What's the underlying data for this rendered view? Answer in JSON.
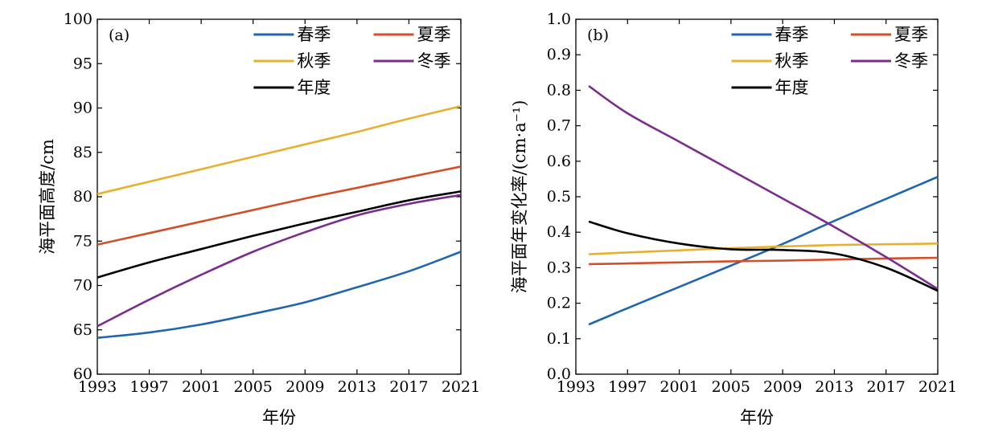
{
  "chart_data": [
    {
      "type": "line",
      "panel_label": "(a)",
      "xlabel": "年份",
      "ylabel": "海平面高度/cm",
      "xlim": [
        1993,
        2021
      ],
      "ylim": [
        60,
        100
      ],
      "xticks": [
        1993,
        1997,
        2001,
        2005,
        2009,
        2013,
        2017,
        2021
      ],
      "yticks": [
        60,
        65,
        70,
        75,
        80,
        85,
        90,
        95,
        100
      ],
      "ytick_labels": [
        "60",
        "65",
        "70",
        "75",
        "80",
        "85",
        "90",
        "95",
        "100"
      ],
      "x": [
        1993,
        1997,
        2001,
        2005,
        2009,
        2013,
        2017,
        2021
      ],
      "legend_position": "top-right",
      "series": [
        {
          "name": "春季",
          "color": "#2166ac",
          "values": [
            64.1,
            64.7,
            65.6,
            66.8,
            68.1,
            69.8,
            71.6,
            73.8
          ]
        },
        {
          "name": "夏季",
          "color": "#d0502a",
          "values": [
            74.6,
            75.9,
            77.2,
            78.5,
            79.8,
            81.0,
            82.2,
            83.4
          ]
        },
        {
          "name": "秋季",
          "color": "#e8b030",
          "values": [
            80.3,
            81.7,
            83.1,
            84.5,
            85.9,
            87.3,
            88.8,
            90.2
          ]
        },
        {
          "name": "冬季",
          "color": "#7b2d8e",
          "values": [
            65.4,
            68.4,
            71.2,
            73.8,
            76.0,
            77.9,
            79.2,
            80.2
          ]
        },
        {
          "name": "年度",
          "color": "#000000",
          "values": [
            70.9,
            72.6,
            74.1,
            75.6,
            77.0,
            78.3,
            79.6,
            80.6
          ]
        }
      ]
    },
    {
      "type": "line",
      "panel_label": "(b)",
      "xlabel": "年份",
      "ylabel": "海平面年变化率/(cm·a⁻¹)",
      "xlim": [
        1993,
        2021
      ],
      "ylim": [
        0,
        1
      ],
      "xticks": [
        1993,
        1997,
        2001,
        2005,
        2009,
        2013,
        2017,
        2021
      ],
      "yticks": [
        0,
        0.1,
        0.2,
        0.3,
        0.4,
        0.5,
        0.6,
        0.7,
        0.8,
        0.9,
        1.0
      ],
      "ytick_labels": [
        "0.0",
        "0.1",
        "0.2",
        "0.3",
        "0.4",
        "0.5",
        "0.6",
        "0.7",
        "0.8",
        "0.9",
        "1.0"
      ],
      "x": [
        1994,
        1997,
        2001,
        2005,
        2009,
        2013,
        2017,
        2021
      ],
      "legend_position": "top-right",
      "series": [
        {
          "name": "春季",
          "color": "#2166ac",
          "values": [
            0.14,
            0.186,
            0.246,
            0.306,
            0.367,
            0.432,
            0.494,
            0.556
          ]
        },
        {
          "name": "夏季",
          "color": "#d0502a",
          "values": [
            0.31,
            0.312,
            0.315,
            0.318,
            0.32,
            0.323,
            0.326,
            0.328
          ]
        },
        {
          "name": "秋季",
          "color": "#e8b030",
          "values": [
            0.338,
            0.343,
            0.349,
            0.355,
            0.36,
            0.364,
            0.366,
            0.368
          ]
        },
        {
          "name": "冬季",
          "color": "#7b2d8e",
          "values": [
            0.812,
            0.735,
            0.655,
            0.575,
            0.495,
            0.415,
            0.33,
            0.24
          ]
        },
        {
          "name": "年度",
          "color": "#000000",
          "values": [
            0.43,
            0.397,
            0.368,
            0.352,
            0.35,
            0.34,
            0.3,
            0.235
          ]
        }
      ]
    }
  ]
}
